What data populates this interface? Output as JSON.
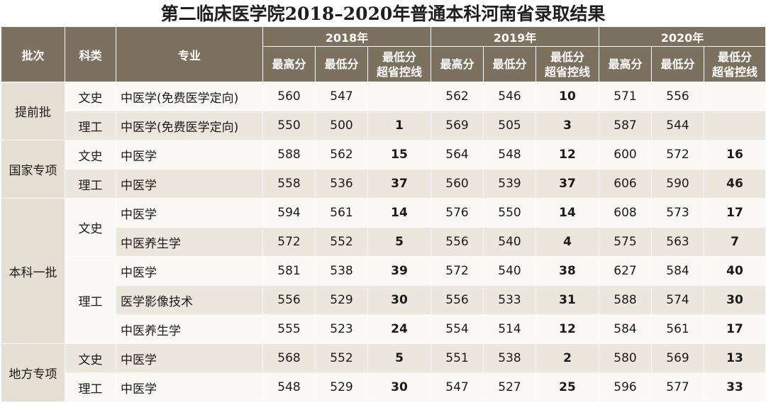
{
  "title": "第二临床医学院2018–2020年普通本科河南省录取结果",
  "header": {
    "batch": "批次",
    "category": "科类",
    "major": "专业",
    "years": [
      "2018年",
      "2019年",
      "2020年"
    ],
    "max": "最高分",
    "min": "最低分",
    "over_line_1": "最低分",
    "over_line_2": "超省控线"
  },
  "groups": [
    {
      "batch": "提前批",
      "rows": [
        {
          "category": "文史",
          "major": "中医学(免费医学定向)",
          "y2018": [
            "560",
            "547",
            ""
          ],
          "y2019": [
            "562",
            "546",
            "10"
          ],
          "y2020": [
            "571",
            "556",
            ""
          ]
        },
        {
          "category": "理工",
          "major": "中医学(免费医学定向)",
          "y2018": [
            "550",
            "500",
            "1"
          ],
          "y2019": [
            "569",
            "505",
            "3"
          ],
          "y2020": [
            "587",
            "544",
            ""
          ]
        }
      ]
    },
    {
      "batch": "国家专项",
      "rows": [
        {
          "category": "文史",
          "major": "中医学",
          "y2018": [
            "588",
            "562",
            "15"
          ],
          "y2019": [
            "564",
            "548",
            "12"
          ],
          "y2020": [
            "600",
            "572",
            "16"
          ]
        },
        {
          "category": "理工",
          "major": "中医学",
          "y2018": [
            "558",
            "536",
            "37"
          ],
          "y2019": [
            "560",
            "539",
            "37"
          ],
          "y2020": [
            "606",
            "590",
            "46"
          ]
        }
      ]
    },
    {
      "batch": "本科一批",
      "rows": [
        {
          "category": "文史",
          "major": "中医学",
          "y2018": [
            "594",
            "561",
            "14"
          ],
          "y2019": [
            "576",
            "550",
            "14"
          ],
          "y2020": [
            "608",
            "573",
            "17"
          ]
        },
        {
          "category": "",
          "major": "中医养生学",
          "y2018": [
            "572",
            "552",
            "5"
          ],
          "y2019": [
            "556",
            "540",
            "4"
          ],
          "y2020": [
            "575",
            "563",
            "7"
          ]
        },
        {
          "category": "理工",
          "major": "中医学",
          "y2018": [
            "581",
            "538",
            "39"
          ],
          "y2019": [
            "572",
            "540",
            "38"
          ],
          "y2020": [
            "627",
            "584",
            "40"
          ]
        },
        {
          "category": "",
          "major": "医学影像技术",
          "y2018": [
            "556",
            "529",
            "30"
          ],
          "y2019": [
            "556",
            "533",
            "31"
          ],
          "y2020": [
            "588",
            "574",
            "30"
          ]
        },
        {
          "category": "",
          "major": "中医养生学",
          "y2018": [
            "555",
            "523",
            "24"
          ],
          "y2019": [
            "554",
            "514",
            "12"
          ],
          "y2020": [
            "584",
            "561",
            "17"
          ]
        }
      ]
    },
    {
      "batch": "地方专项",
      "rows": [
        {
          "category": "文史",
          "major": "中医学",
          "y2018": [
            "568",
            "552",
            "5"
          ],
          "y2019": [
            "551",
            "538",
            "2"
          ],
          "y2020": [
            "580",
            "569",
            "13"
          ]
        },
        {
          "category": "理工",
          "major": "中医学",
          "y2018": [
            "548",
            "529",
            "30"
          ],
          "y2019": [
            "547",
            "527",
            "25"
          ],
          "y2020": [
            "596",
            "577",
            "33"
          ]
        }
      ]
    }
  ]
}
